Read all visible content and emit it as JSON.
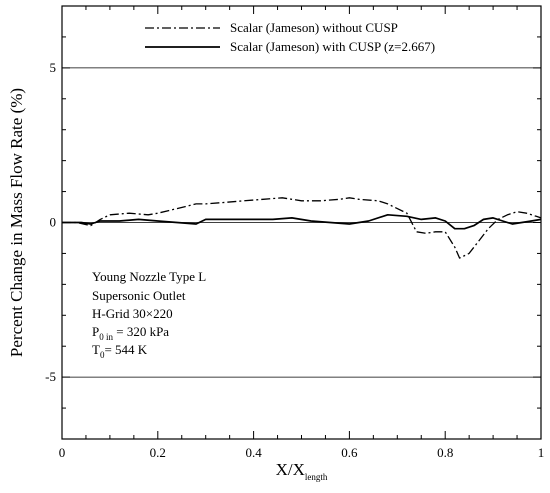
{
  "chart_data": {
    "type": "line",
    "xlabel": "X/X",
    "xlabel_sub": "length",
    "ylabel": "Percent Change in Mass Flow Rate (%)",
    "xlim": [
      0,
      1
    ],
    "ylim": [
      -7,
      7
    ],
    "x_ticks": [
      "0",
      "0.2",
      "0.4",
      "0.6",
      "0.8",
      "1"
    ],
    "x_tick_values": [
      0,
      0.2,
      0.4,
      0.6,
      0.8,
      1
    ],
    "y_ticks": [
      "-5",
      "0",
      "5"
    ],
    "y_tick_values": [
      -5,
      0,
      5
    ],
    "gridlines_y": [
      -5,
      0,
      5
    ],
    "legend_position": "top-center",
    "series": [
      {
        "name": "Scalar (Jameson) without CUSP",
        "style": "dash-dot",
        "x": [
          0,
          0.03,
          0.06,
          0.08,
          0.1,
          0.14,
          0.18,
          0.2,
          0.24,
          0.28,
          0.3,
          0.34,
          0.38,
          0.42,
          0.46,
          0.48,
          0.5,
          0.54,
          0.58,
          0.6,
          0.62,
          0.66,
          0.68,
          0.7,
          0.72,
          0.74,
          0.76,
          0.78,
          0.8,
          0.82,
          0.83,
          0.85,
          0.87,
          0.89,
          0.91,
          0.93,
          0.95,
          0.97,
          0.99,
          1.0
        ],
        "y": [
          0,
          0,
          -0.1,
          0.1,
          0.25,
          0.3,
          0.25,
          0.3,
          0.45,
          0.6,
          0.6,
          0.65,
          0.7,
          0.75,
          0.8,
          0.75,
          0.7,
          0.7,
          0.75,
          0.8,
          0.75,
          0.7,
          0.6,
          0.45,
          0.3,
          -0.3,
          -0.35,
          -0.3,
          -0.3,
          -0.8,
          -1.15,
          -1.0,
          -0.6,
          -0.2,
          0.1,
          0.25,
          0.35,
          0.3,
          0.2,
          0.15
        ]
      },
      {
        "name": "Scalar (Jameson) with CUSP (z=2.667)",
        "style": "solid",
        "x": [
          0,
          0.04,
          0.06,
          0.08,
          0.12,
          0.16,
          0.2,
          0.24,
          0.28,
          0.3,
          0.36,
          0.4,
          0.44,
          0.48,
          0.52,
          0.56,
          0.6,
          0.64,
          0.68,
          0.72,
          0.75,
          0.78,
          0.8,
          0.82,
          0.84,
          0.86,
          0.88,
          0.9,
          0.92,
          0.94,
          0.96,
          0.98,
          1.0
        ],
        "y": [
          0,
          0,
          -0.05,
          0.05,
          0.05,
          0.1,
          0.05,
          0.0,
          -0.05,
          0.1,
          0.1,
          0.1,
          0.1,
          0.15,
          0.05,
          0.0,
          -0.05,
          0.05,
          0.25,
          0.2,
          0.1,
          0.15,
          0.05,
          -0.2,
          -0.2,
          -0.1,
          0.1,
          0.15,
          0.05,
          -0.05,
          0.0,
          0.05,
          0.1
        ]
      }
    ],
    "annotations": [
      "Young Nozzle Type L",
      "Supersonic Outlet",
      "H-Grid 30×220"
    ],
    "annotation_p0": {
      "main": "P",
      "sub": "0 in",
      "rest": " = 320 kPa"
    },
    "annotation_t0": {
      "main": "T",
      "sub": "0",
      "rest": "= 544 K"
    }
  }
}
